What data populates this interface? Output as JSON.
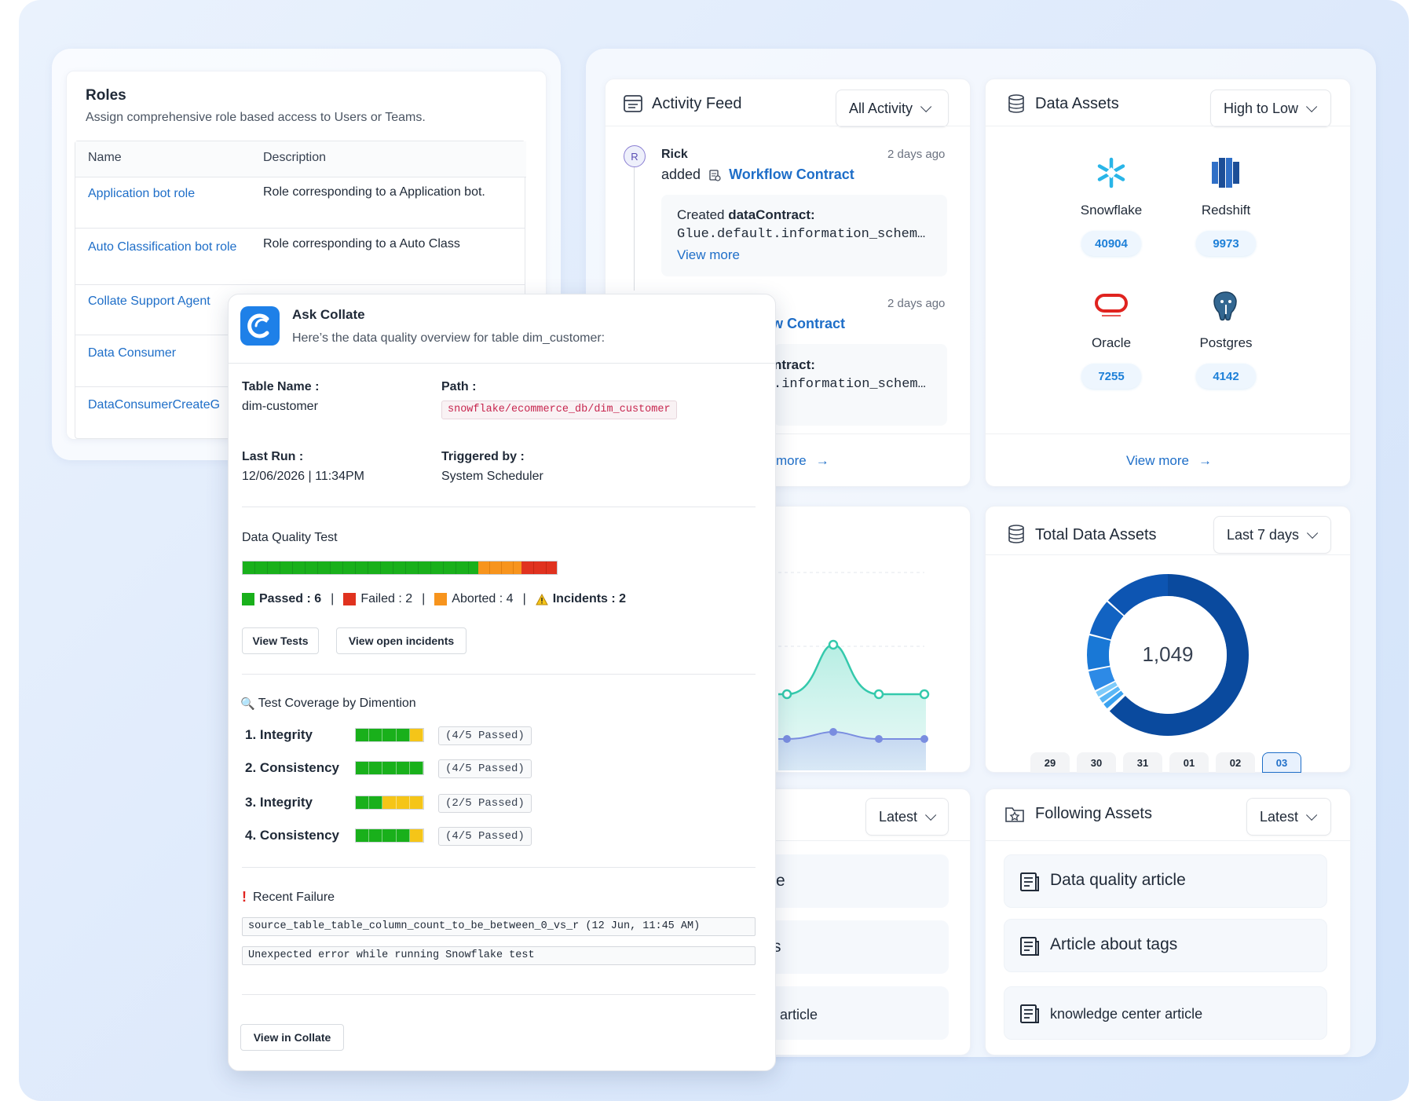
{
  "roles": {
    "title": "Roles",
    "subtitle": "Assign comprehensive role based access to Users or Teams.",
    "columns": [
      "Name",
      "Description"
    ],
    "rows": [
      {
        "name": "Application bot role",
        "desc": "Role corresponding to a Application bot."
      },
      {
        "name": "Auto Classification bot role",
        "desc": "Role corresponding to a Auto Class"
      },
      {
        "name": "Collate Support Agent",
        "desc": ""
      },
      {
        "name": "Data Consumer",
        "desc": ""
      },
      {
        "name": "DataConsumerCreateG",
        "desc": ""
      }
    ]
  },
  "activity_feed": {
    "title": "Activity Feed",
    "filter": "All Activity",
    "items": [
      {
        "avatar": "R",
        "user": "Rick",
        "time": "2 days ago",
        "verb": "added",
        "entity": "Workflow Contract",
        "created_label": "Created ",
        "created_strong": "dataContract:",
        "code": "Glue.default.information_schem…",
        "view_more": "View more"
      },
      {
        "time": "2 days ago",
        "entity": "w Contract",
        "created_strong": "ntract:",
        "code": ".information_schem…"
      }
    ],
    "footer": "more"
  },
  "data_assets": {
    "title": "Data Assets",
    "sort": "High to Low",
    "items": [
      {
        "name": "Snowflake",
        "count": "40904",
        "icon": "snowflake-icon"
      },
      {
        "name": "Redshift",
        "count": "9973",
        "icon": "redshift-icon"
      },
      {
        "name": "Oracle",
        "count": "7255",
        "icon": "oracle-icon"
      },
      {
        "name": "Postgres",
        "count": "4142",
        "icon": "postgres-icon"
      }
    ],
    "view_more": "View more"
  },
  "total_assets": {
    "title": "Total Data Assets",
    "range": "Last 7 days",
    "total": "1,049",
    "dates": [
      "29",
      "30",
      "31",
      "01",
      "02",
      "03"
    ],
    "selected_date": "03"
  },
  "following": {
    "title": "Following Assets",
    "sort": "Latest",
    "items": [
      "Data quality article",
      "Article about tags",
      "knowledge center article"
    ]
  },
  "knowledge": {
    "sort": "Latest",
    "items": [
      "e",
      "s",
      "r article"
    ]
  },
  "ask_collate": {
    "title": "Ask Collate",
    "subtitle": "Here’s the data quality overview for table dim_customer:",
    "table_name_label": "Table Name :",
    "table_name": "dim-customer",
    "path_label": "Path :",
    "path": "snowflake/ecommerce_db/dim_customer",
    "last_run_label": "Last Run :",
    "last_run": "12/06/2026 | 11:34PM",
    "triggered_label": "Triggered by :",
    "triggered": "System Scheduler",
    "dq_title": "Data Quality Test",
    "dq_counts": {
      "passed": 6,
      "failed": 2,
      "aborted": 4,
      "incidents": 2
    },
    "legend": {
      "passed": "Passed : 6",
      "failed": "Failed : 2",
      "aborted": "Aborted : 4",
      "incidents": "Incidents : 2"
    },
    "btn_view_tests": "View Tests",
    "btn_view_incidents": "View open incidents",
    "coverage_title": "Test Coverage by Dimention",
    "coverage": [
      {
        "label": "1. Integrity",
        "passed": 4,
        "total": 5,
        "text": "(4/5 Passed)"
      },
      {
        "label": "2. Consistency",
        "passed": 4,
        "total": 5,
        "text": "(4/5 Passed)"
      },
      {
        "label": "3. Integrity",
        "passed": 2,
        "total": 5,
        "text": "(2/5 Passed)"
      },
      {
        "label": "4. Consistency",
        "passed": 4,
        "total": 5,
        "text": "(4/5 Passed)"
      }
    ],
    "recent_failure_title": "Recent Failure",
    "failure_test": "source_table_table_column_count_to_be_between_0_vs_r (12 Jun, 11:45 AM)",
    "failure_error": "Unexpected error while running Snowflake test",
    "btn_view_in_collate": "View in Collate"
  },
  "colors": {
    "accent": "#1e6ec8",
    "passed": "#19b01b",
    "failed": "#e0321f",
    "aborted": "#f7941d",
    "donut_main": "#0a4a9e"
  }
}
